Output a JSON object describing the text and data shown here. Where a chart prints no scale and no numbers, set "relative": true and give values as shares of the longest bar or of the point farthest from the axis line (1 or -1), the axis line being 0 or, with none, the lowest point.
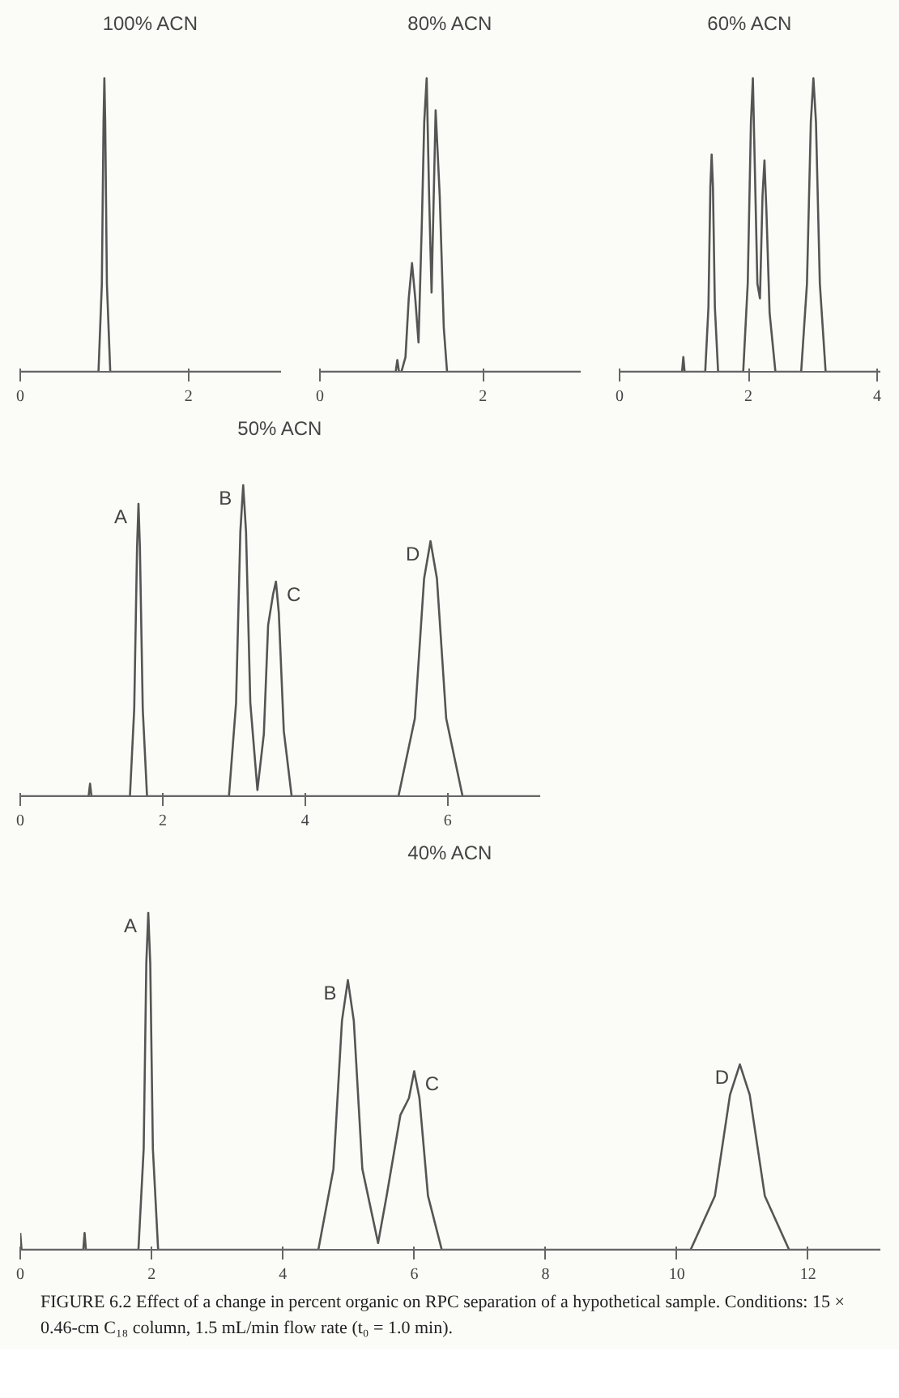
{
  "chart_data": [
    {
      "type": "line",
      "title": "100% ACN",
      "relative": true,
      "xlim": [
        0,
        3.1
      ],
      "xticks": [
        0,
        2
      ],
      "grid": false,
      "series": [
        {
          "color": "#555555",
          "x": [
            0,
            0.93,
            0.97,
            0.99,
            1.0,
            1.01,
            1.03,
            1.07,
            3.1
          ],
          "values": [
            0,
            0,
            0.3,
            0.85,
            1,
            0.85,
            0.3,
            0,
            0
          ]
        }
      ]
    },
    {
      "type": "line",
      "title": "80% ACN",
      "relative": true,
      "xlim": [
        0,
        3.2
      ],
      "xticks": [
        0,
        2
      ],
      "grid": false,
      "series": [
        {
          "color": "#555555",
          "x": [
            0,
            0.93,
            0.95,
            0.97,
            1.0,
            1.05,
            1.09,
            1.13,
            1.17,
            1.21,
            1.25,
            1.28,
            1.31,
            1.34,
            1.37,
            1.42,
            1.47,
            1.52,
            1.56,
            3.2
          ],
          "values": [
            0,
            0,
            0.04,
            0,
            0,
            0.05,
            0.25,
            0.37,
            0.25,
            0.1,
            0.5,
            0.85,
            1,
            0.6,
            0.27,
            0.89,
            0.6,
            0.15,
            0,
            0
          ]
        }
      ]
    },
    {
      "type": "line",
      "title": "60% ACN",
      "relative": true,
      "xlim": [
        0,
        4.05
      ],
      "xticks": [
        0,
        2,
        4
      ],
      "grid": false,
      "series": [
        {
          "color": "#555555",
          "x": [
            0,
            0.97,
            0.99,
            1.01,
            1.33,
            1.38,
            1.41,
            1.43,
            1.45,
            1.48,
            1.53,
            1.92,
            1.99,
            2.04,
            2.07,
            2.1,
            2.14,
            2.18,
            2.22,
            2.25,
            2.28,
            2.33,
            2.42,
            2.82,
            2.91,
            2.97,
            3.01,
            3.05,
            3.11,
            3.2,
            4.05
          ],
          "values": [
            0,
            0,
            0.05,
            0,
            0,
            0.22,
            0.63,
            0.74,
            0.63,
            0.22,
            0,
            0,
            0.3,
            0.85,
            1,
            0.7,
            0.3,
            0.25,
            0.6,
            0.72,
            0.55,
            0.2,
            0,
            0,
            0.3,
            0.85,
            1,
            0.85,
            0.3,
            0,
            0
          ]
        }
      ]
    },
    {
      "type": "line",
      "title": "50% ACN",
      "relative": true,
      "xlim": [
        0,
        7.3
      ],
      "xticks": [
        0,
        2,
        4,
        6
      ],
      "grid": false,
      "series": [
        {
          "color": "#555555",
          "x": [
            0,
            0.96,
            0.98,
            1.0,
            1.54,
            1.6,
            1.64,
            1.66,
            1.68,
            1.72,
            1.78,
            2.93,
            3.03,
            3.09,
            3.13,
            3.17,
            3.23,
            3.33,
            3.42,
            3.48,
            3.55,
            3.59,
            3.63,
            3.7,
            3.81,
            5.31,
            5.54,
            5.67,
            5.76,
            5.85,
            5.98,
            6.21,
            7.3
          ],
          "values": [
            0,
            0,
            0.04,
            0,
            0,
            0.28,
            0.8,
            0.94,
            0.8,
            0.28,
            0,
            0,
            0.3,
            0.85,
            1,
            0.85,
            0.3,
            0.02,
            0.2,
            0.55,
            0.65,
            0.69,
            0.59,
            0.21,
            0,
            0,
            0.25,
            0.7,
            0.82,
            0.7,
            0.25,
            0,
            0
          ]
        }
      ],
      "annotations": [
        {
          "text": "A",
          "x": 1.66,
          "y": 0.94
        },
        {
          "text": "B",
          "x": 3.13,
          "y": 1
        },
        {
          "text": "C",
          "x": 3.59,
          "y": 0.69
        },
        {
          "text": "D",
          "x": 5.76,
          "y": 0.82
        }
      ]
    },
    {
      "type": "line",
      "title": "40% ACN",
      "relative": true,
      "xlim": [
        0,
        13.1
      ],
      "xticks": [
        0,
        2,
        4,
        6,
        8,
        10,
        12
      ],
      "grid": false,
      "series": [
        {
          "color": "#555555",
          "x": [
            0,
            0.02,
            0.96,
            0.98,
            1.0,
            1.8,
            1.88,
            1.92,
            1.95,
            1.98,
            2.02,
            2.1,
            4.54,
            4.77,
            4.9,
            4.99,
            5.08,
            5.21,
            5.45,
            5.58,
            5.79,
            5.92,
            6.0,
            6.08,
            6.21,
            6.42,
            10.21,
            10.58,
            10.81,
            10.96,
            11.11,
            11.34,
            11.71,
            13.1
          ],
          "values": [
            0.05,
            0,
            0,
            0.05,
            0,
            0,
            0.3,
            0.85,
            1,
            0.85,
            0.3,
            0,
            0,
            0.24,
            0.68,
            0.8,
            0.68,
            0.24,
            0.02,
            0.16,
            0.4,
            0.45,
            0.53,
            0.45,
            0.16,
            0,
            0,
            0.16,
            0.46,
            0.55,
            0.46,
            0.16,
            0,
            0
          ]
        }
      ],
      "annotations": [
        {
          "text": "A",
          "x": 1.95,
          "y": 1
        },
        {
          "text": "B",
          "x": 4.99,
          "y": 0.8
        },
        {
          "text": "C",
          "x": 6.0,
          "y": 0.53
        },
        {
          "text": "D",
          "x": 10.96,
          "y": 0.55
        },
        "FIGURE 6.2 Effect of a change in percent organic on RPC separation of a hypothetical sample. Conditions: 15 × 0.46-cm C₁₈ column, 1.5 mL/min flow rate (t₀ = 1.0 min)."
      ]
    }
  ]
}
